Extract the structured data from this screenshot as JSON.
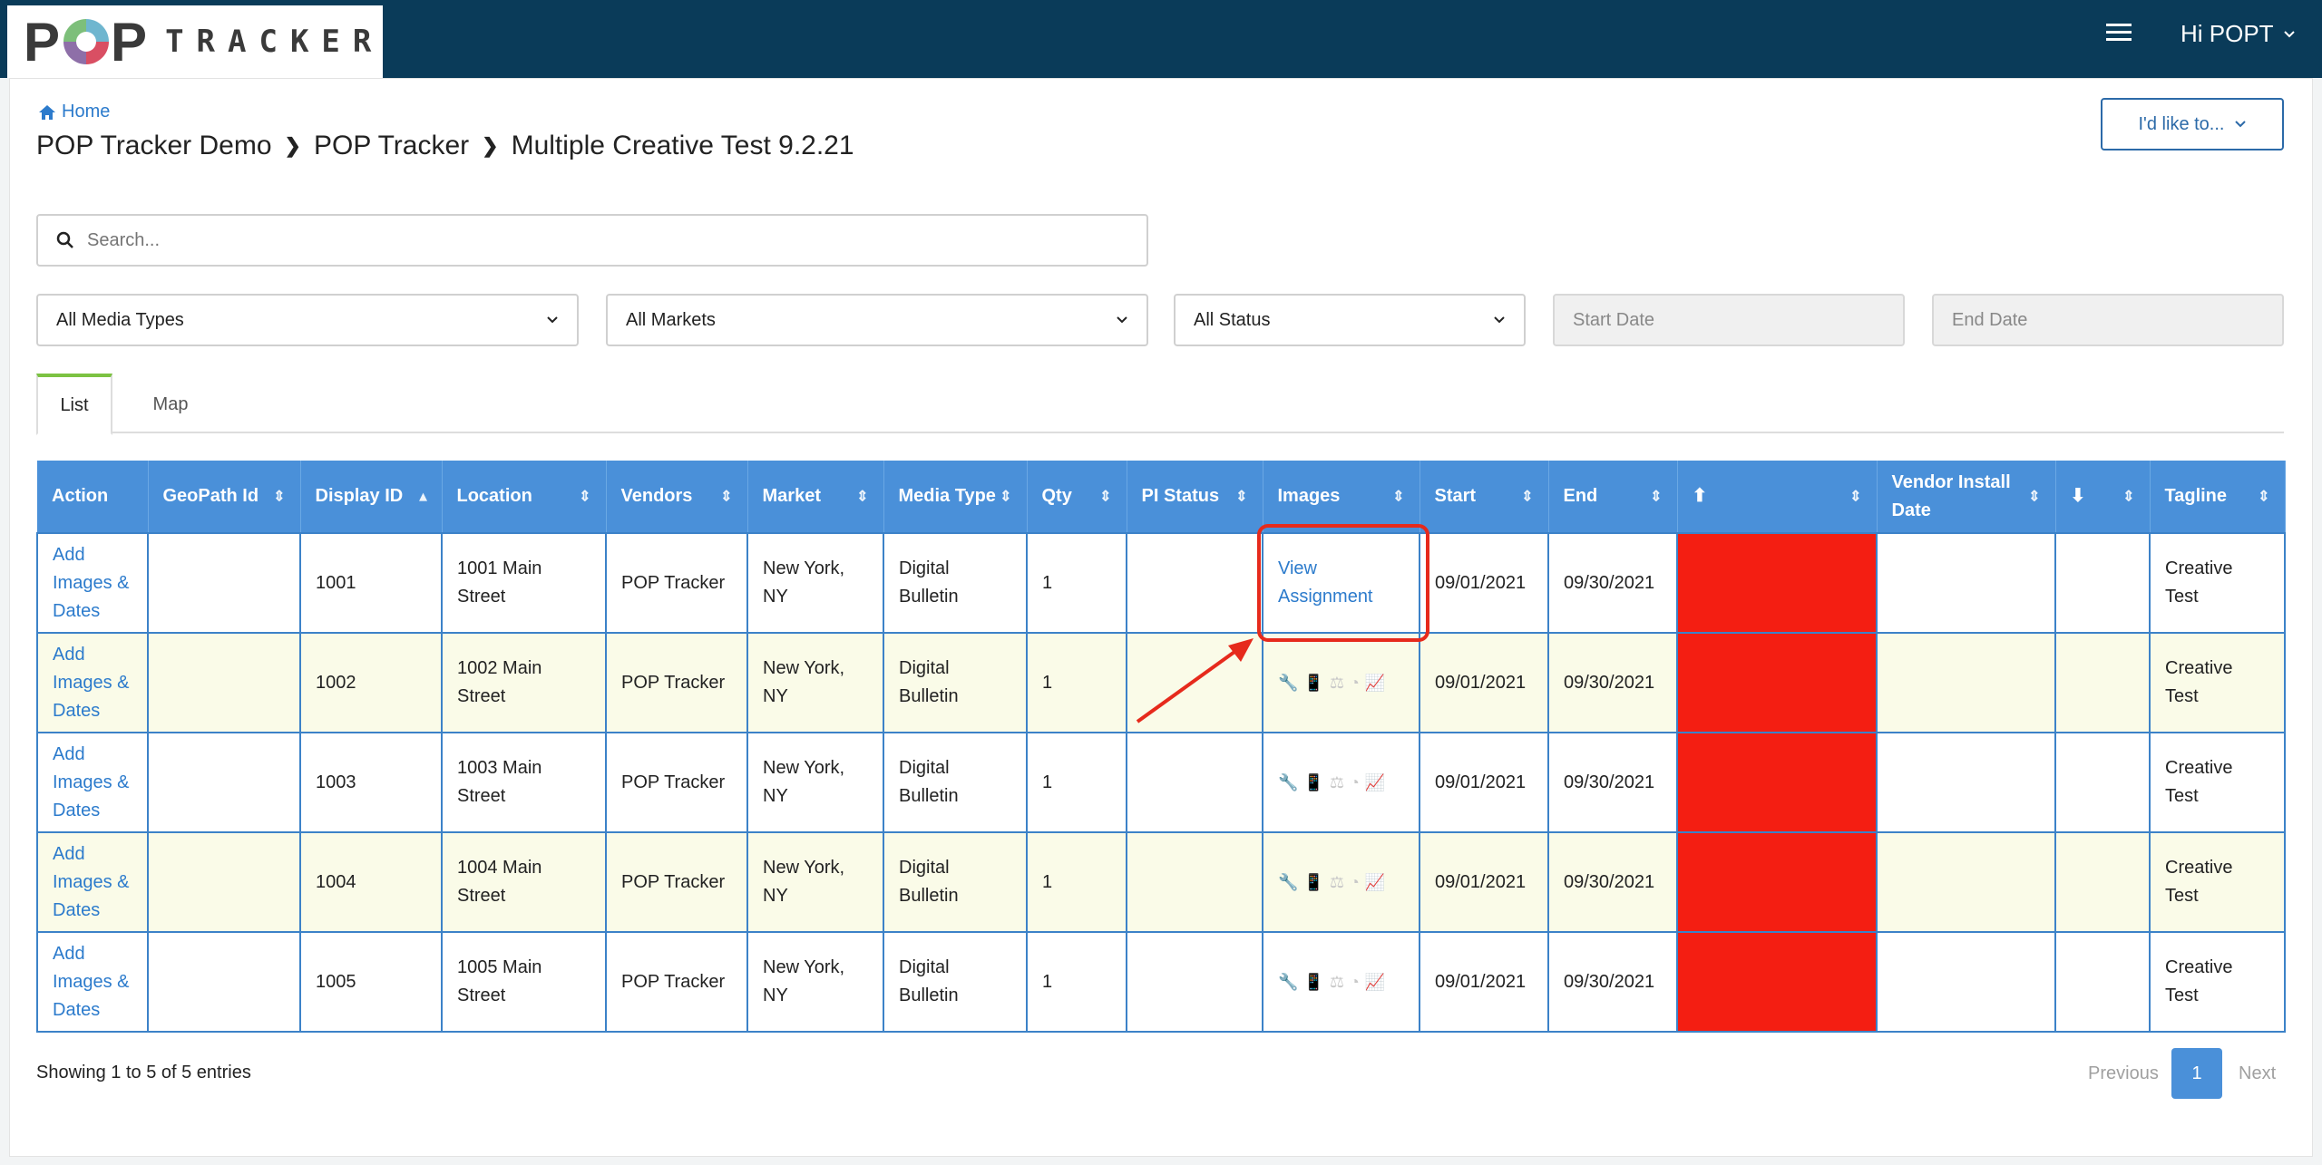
{
  "header": {
    "logo_pop": "P",
    "logo_pop2": "P",
    "logo_tracker": "TRACKER",
    "greeting": "Hi POPT"
  },
  "nav": {
    "home": "Home",
    "breadcrumb": [
      "POP Tracker Demo",
      "POP Tracker",
      "Multiple Creative Test 9.2.21"
    ],
    "action_menu": "I'd like to..."
  },
  "search": {
    "placeholder": "Search..."
  },
  "filters": {
    "media_types": "All Media Types",
    "markets": "All Markets",
    "status": "All Status",
    "start_date_placeholder": "Start Date",
    "end_date_placeholder": "End Date"
  },
  "tabs": [
    "List",
    "Map"
  ],
  "table": {
    "headers": [
      "Action",
      "GeoPath Id",
      "Display ID",
      "Location",
      "Vendors",
      "Market",
      "Media Type",
      "Qty",
      "PI Status",
      "Images",
      "Start",
      "End",
      "",
      "Vendor Install Date",
      "",
      "Tagline"
    ],
    "rows": [
      {
        "action": "Add Images & Dates",
        "geopath": "",
        "display_id": "1001",
        "location": "1001 Main Street",
        "vendor": "POP Tracker",
        "market": "New York, NY",
        "media_type": "Digital Bulletin",
        "qty": "1",
        "pi_status": "",
        "images": "View Assignment",
        "start": "09/01/2021",
        "end": "09/30/2021",
        "install": "",
        "tagline": "Creative Test"
      },
      {
        "action": "Add Images & Dates",
        "geopath": "",
        "display_id": "1002",
        "location": "1002 Main Street",
        "vendor": "POP Tracker",
        "market": "New York, NY",
        "media_type": "Digital Bulletin",
        "qty": "1",
        "pi_status": "",
        "images": "",
        "start": "09/01/2021",
        "end": "09/30/2021",
        "install": "",
        "tagline": "Creative Test"
      },
      {
        "action": "Add Images & Dates",
        "geopath": "",
        "display_id": "1003",
        "location": "1003 Main Street",
        "vendor": "POP Tracker",
        "market": "New York, NY",
        "media_type": "Digital Bulletin",
        "qty": "1",
        "pi_status": "",
        "images": "",
        "start": "09/01/2021",
        "end": "09/30/2021",
        "install": "",
        "tagline": "Creative Test"
      },
      {
        "action": "Add Images & Dates",
        "geopath": "",
        "display_id": "1004",
        "location": "1004 Main Street",
        "vendor": "POP Tracker",
        "market": "New York, NY",
        "media_type": "Digital Bulletin",
        "qty": "1",
        "pi_status": "",
        "images": "",
        "start": "09/01/2021",
        "end": "09/30/2021",
        "install": "",
        "tagline": "Creative Test"
      },
      {
        "action": "Add Images & Dates",
        "geopath": "",
        "display_id": "1005",
        "location": "1005 Main Street",
        "vendor": "POP Tracker",
        "market": "New York, NY",
        "media_type": "Digital Bulletin",
        "qty": "1",
        "pi_status": "",
        "images": "",
        "start": "09/01/2021",
        "end": "09/30/2021",
        "install": "",
        "tagline": "Creative Test"
      }
    ]
  },
  "pagination": {
    "info": "Showing 1 to 5 of 5 entries",
    "previous": "Previous",
    "current": "1",
    "next": "Next"
  },
  "colors": {
    "topbar": "#0a3b59",
    "header_blue": "#4a90d9",
    "status_red": "#f41e12",
    "link_blue": "#2c7bcc",
    "annotation_red": "#e62a1c"
  },
  "icons": [
    "home-icon",
    "chevron-right-icon",
    "chevron-down-icon",
    "search-icon",
    "sort-icon",
    "wrench-icon",
    "phone-icon",
    "scale-icon",
    "pie-chart-icon",
    "line-chart-icon",
    "arrow-up-circle-icon",
    "arrow-down-circle-icon",
    "hamburger-menu-icon"
  ]
}
